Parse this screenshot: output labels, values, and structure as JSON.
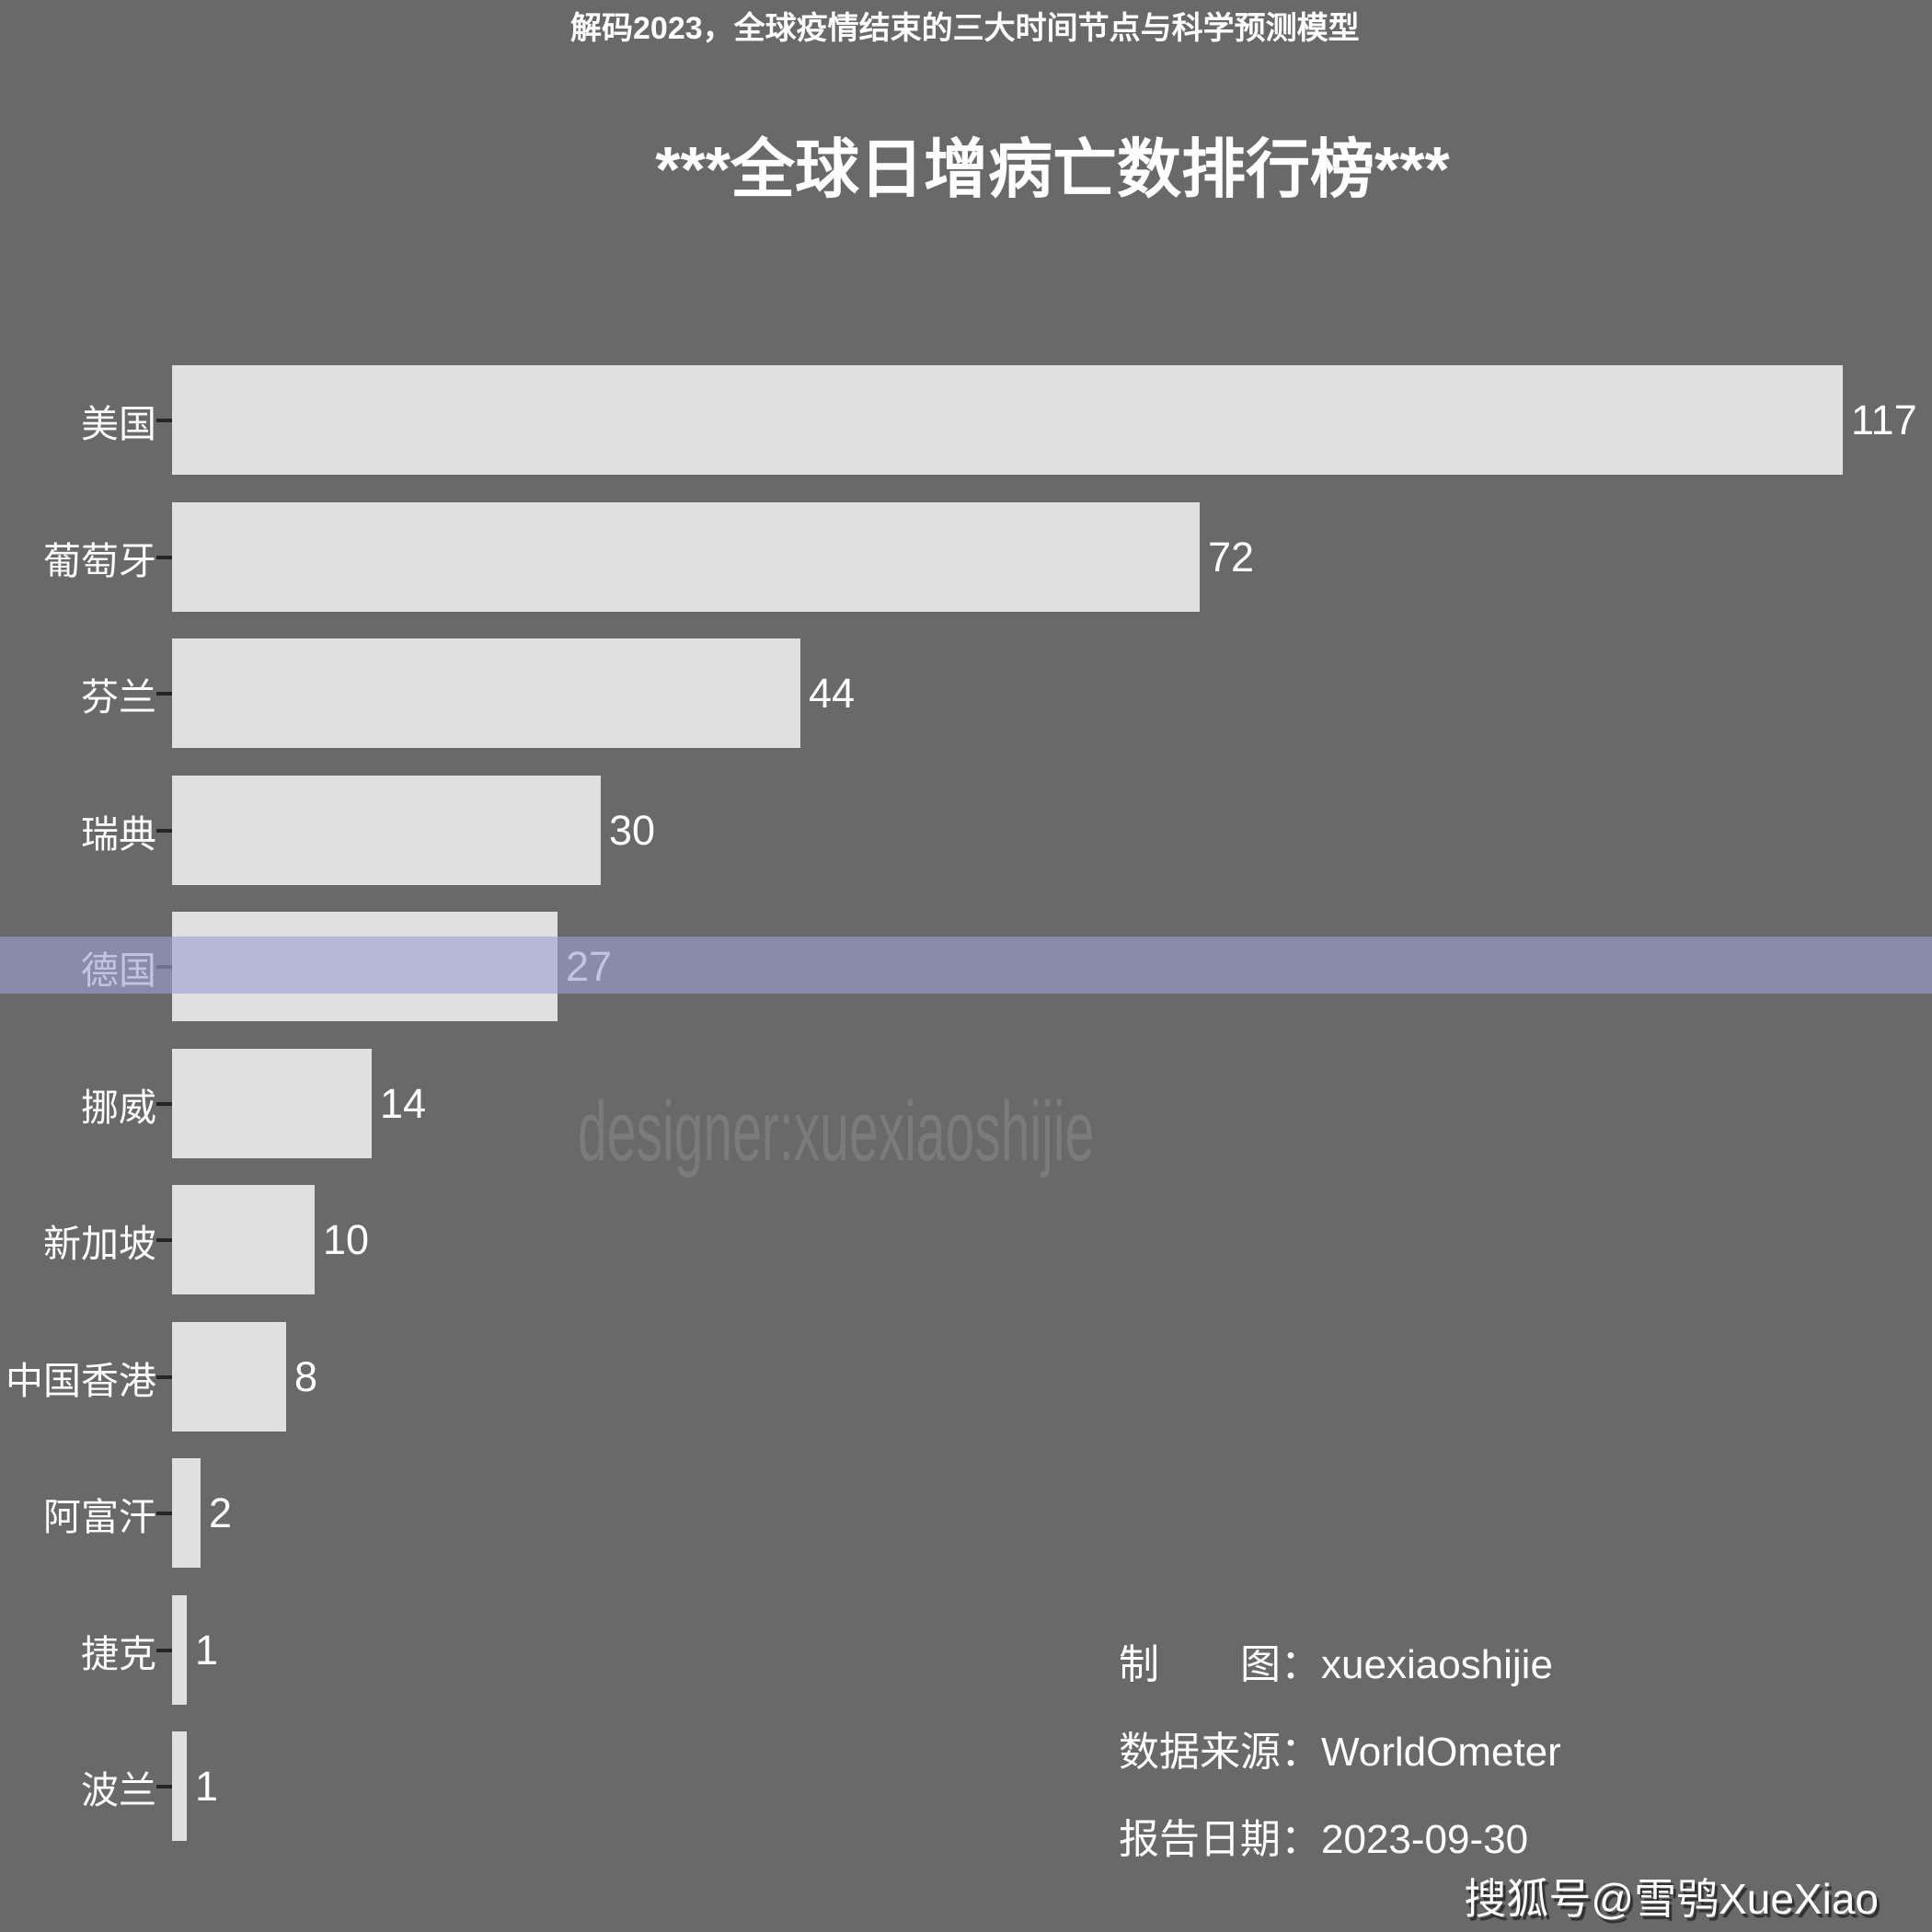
{
  "chart_data": {
    "type": "bar",
    "orientation": "horizontal",
    "title": "***全球日增病亡数排行榜***",
    "categories": [
      "美国",
      "葡萄牙",
      "芬兰",
      "瑞典",
      "德国",
      "挪威",
      "新加坡",
      "中国香港",
      "阿富汗",
      "捷克",
      "波兰"
    ],
    "values": [
      117,
      72,
      44,
      30,
      27,
      14,
      10,
      8,
      2,
      1,
      1
    ],
    "xlabel": "",
    "ylabel": "",
    "xlim": [
      0,
      120
    ],
    "grid": false,
    "legend": false,
    "bar_color": "#e0e0e0",
    "background_color": "#696969",
    "text_color": "#ffffff",
    "tick_color": "#252525"
  },
  "banner": {
    "text": "解码2023，全球疫情结束的三大时间节点与科学预测模型",
    "base_color": "#9BA2D2",
    "overlay_rgba": "rgba(155,162,210,0.62)"
  },
  "watermark": {
    "text": "designer:xuexiaoshijie"
  },
  "attribution": {
    "lines": [
      {
        "label": "制　　图：",
        "value": "xuexiaoshijie"
      },
      {
        "label": "数据来源：",
        "value": "WorldOmeter"
      },
      {
        "label": "报告日期：",
        "value": "2023-09-30"
      }
    ]
  },
  "sohu_badge": {
    "text": "搜狐号@雪鸮XueXiao"
  }
}
